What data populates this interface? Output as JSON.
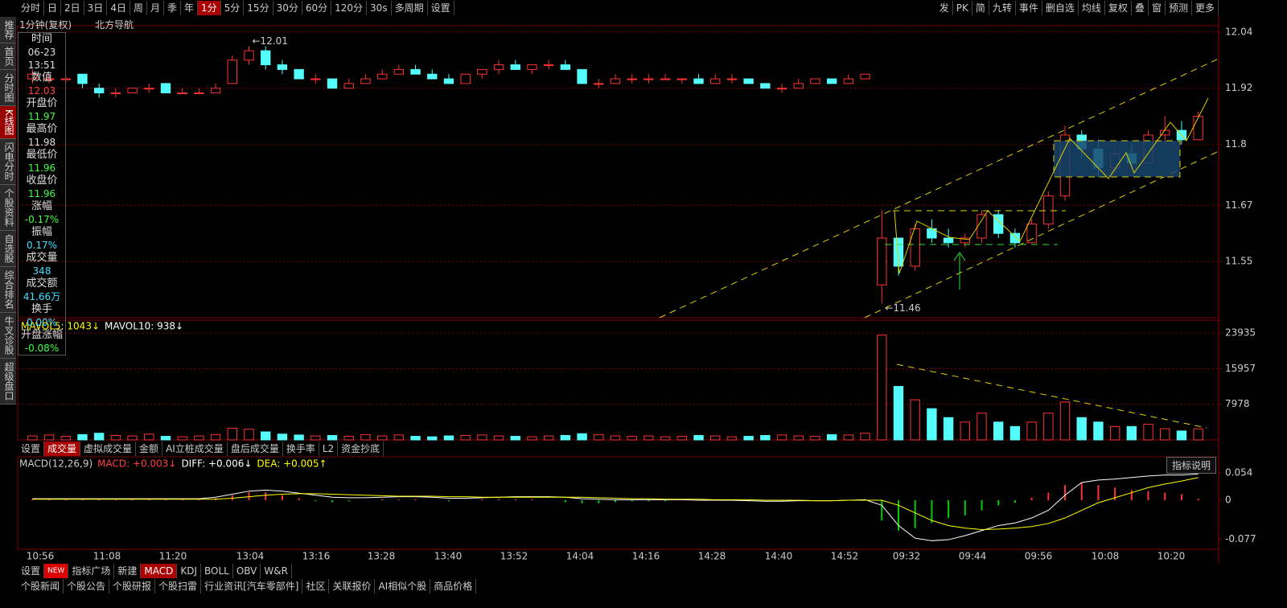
{
  "toolbar": {
    "left": [
      "分时",
      "日",
      "2日",
      "3日",
      "4日",
      "周",
      "月",
      "季",
      "年",
      "1分",
      "5分",
      "15分",
      "30分",
      "60分",
      "120分",
      "30s",
      "多周期",
      "设置"
    ],
    "right": [
      "发",
      "PK",
      "简",
      "九转",
      "事件",
      "删自选",
      "均线",
      "复权",
      "叠",
      "窗",
      "预测",
      "更多"
    ]
  },
  "sidebar": [
    "推荐",
    "首页",
    "分时图",
    "K线图",
    "闪电分时",
    "个股资料",
    "自选股",
    "综合排名",
    "牛叉诊股",
    "超级盘口"
  ],
  "header": {
    "period": "1分钟(复权)",
    "name": "北方导航"
  },
  "info": [
    {
      "label": "时间",
      "values": [
        "06-23",
        "13:51"
      ]
    },
    {
      "label": "数值",
      "values": [
        "12.03"
      ]
    },
    {
      "label": "开盘价",
      "values": [
        "11.97"
      ]
    },
    {
      "label": "最高价",
      "values": [
        "11.98"
      ]
    },
    {
      "label": "最低价",
      "values": [
        "11.96"
      ]
    },
    {
      "label": "收盘价",
      "values": [
        "11.96"
      ]
    },
    {
      "label": "涨幅",
      "values": [
        "-0.17%"
      ]
    },
    {
      "label": "振幅",
      "values": [
        "0.17%"
      ]
    },
    {
      "label": "成交量",
      "values": [
        "348"
      ]
    },
    {
      "label": "成交额",
      "values": [
        "41.66万"
      ]
    },
    {
      "label": "换手",
      "values": [
        "0.00%"
      ]
    },
    {
      "label": "开盘涨幅",
      "values": [
        "-0.08%"
      ]
    }
  ],
  "chart_data": [
    {
      "type": "candlestick",
      "up_color": "#ff3232",
      "down_color": "#54fcfc",
      "ylim": [
        11.43,
        12.05
      ],
      "yticks": [
        12.04,
        11.92,
        11.8,
        11.67,
        11.55
      ],
      "grid": true,
      "annotations": [
        "←12.01",
        "←11.46"
      ],
      "candles": [
        [
          11.94,
          11.96,
          11.93,
          11.95
        ],
        [
          11.94,
          11.95,
          11.93,
          11.94
        ],
        [
          11.94,
          11.95,
          11.93,
          11.94
        ],
        [
          11.95,
          11.95,
          11.92,
          11.93
        ],
        [
          11.92,
          11.93,
          11.9,
          11.91
        ],
        [
          11.91,
          11.92,
          11.9,
          11.91
        ],
        [
          11.91,
          11.92,
          11.91,
          11.92
        ],
        [
          11.92,
          11.93,
          11.91,
          11.92
        ],
        [
          11.93,
          11.93,
          11.91,
          11.91
        ],
        [
          11.91,
          11.92,
          11.91,
          11.91
        ],
        [
          11.91,
          11.92,
          11.91,
          11.91
        ],
        [
          11.91,
          11.93,
          11.91,
          11.92
        ],
        [
          11.93,
          11.99,
          11.93,
          11.98
        ],
        [
          11.98,
          12.01,
          11.97,
          12.0
        ],
        [
          12.0,
          12.01,
          11.96,
          11.97
        ],
        [
          11.97,
          11.98,
          11.95,
          11.96
        ],
        [
          11.96,
          11.96,
          11.94,
          11.94
        ],
        [
          11.94,
          11.95,
          11.93,
          11.94
        ],
        [
          11.94,
          11.94,
          11.92,
          11.92
        ],
        [
          11.92,
          11.94,
          11.92,
          11.93
        ],
        [
          11.93,
          11.95,
          11.93,
          11.94
        ],
        [
          11.94,
          11.96,
          11.94,
          11.95
        ],
        [
          11.95,
          11.97,
          11.95,
          11.96
        ],
        [
          11.96,
          11.97,
          11.95,
          11.95
        ],
        [
          11.95,
          11.96,
          11.94,
          11.94
        ],
        [
          11.94,
          11.95,
          11.93,
          11.93
        ],
        [
          11.93,
          11.95,
          11.93,
          11.95
        ],
        [
          11.95,
          11.96,
          11.94,
          11.96
        ],
        [
          11.96,
          11.98,
          11.95,
          11.97
        ],
        [
          11.97,
          11.98,
          11.96,
          11.96
        ],
        [
          11.96,
          11.97,
          11.95,
          11.97
        ],
        [
          11.97,
          11.98,
          11.96,
          11.97
        ],
        [
          11.97,
          11.98,
          11.96,
          11.96
        ],
        [
          11.96,
          11.96,
          11.93,
          11.93
        ],
        [
          11.93,
          11.94,
          11.92,
          11.93
        ],
        [
          11.93,
          11.95,
          11.93,
          11.94
        ],
        [
          11.94,
          11.95,
          11.93,
          11.94
        ],
        [
          11.94,
          11.95,
          11.93,
          11.94
        ],
        [
          11.94,
          11.95,
          11.94,
          11.94
        ],
        [
          11.94,
          11.94,
          11.93,
          11.94
        ],
        [
          11.94,
          11.95,
          11.93,
          11.93
        ],
        [
          11.93,
          11.95,
          11.93,
          11.94
        ],
        [
          11.94,
          11.95,
          11.93,
          11.94
        ],
        [
          11.94,
          11.94,
          11.93,
          11.93
        ],
        [
          11.93,
          11.93,
          11.92,
          11.92
        ],
        [
          11.92,
          11.93,
          11.91,
          11.92
        ],
        [
          11.92,
          11.94,
          11.92,
          11.93
        ],
        [
          11.93,
          11.94,
          11.93,
          11.94
        ],
        [
          11.94,
          11.94,
          11.93,
          11.93
        ],
        [
          11.93,
          11.95,
          11.93,
          11.94
        ],
        [
          11.94,
          11.95,
          11.94,
          11.95
        ],
        [
          11.5,
          11.66,
          11.46,
          11.6
        ],
        [
          11.6,
          11.6,
          11.52,
          11.54
        ],
        [
          11.54,
          11.63,
          11.53,
          11.62
        ],
        [
          11.62,
          11.64,
          11.59,
          11.6
        ],
        [
          11.6,
          11.62,
          11.58,
          11.59
        ],
        [
          11.59,
          11.61,
          11.58,
          11.6
        ],
        [
          11.6,
          11.66,
          11.59,
          11.65
        ],
        [
          11.65,
          11.66,
          11.6,
          11.61
        ],
        [
          11.61,
          11.62,
          11.58,
          11.59
        ],
        [
          11.59,
          11.64,
          11.59,
          11.63
        ],
        [
          11.63,
          11.7,
          11.62,
          11.69
        ],
        [
          11.69,
          11.84,
          11.68,
          11.82
        ],
        [
          11.82,
          11.83,
          11.77,
          11.79
        ],
        [
          11.79,
          11.81,
          11.73,
          11.75
        ],
        [
          11.75,
          11.79,
          11.74,
          11.78
        ],
        [
          11.78,
          11.8,
          11.75,
          11.76
        ],
        [
          11.76,
          11.83,
          11.76,
          11.82
        ],
        [
          11.82,
          11.86,
          11.8,
          11.83
        ],
        [
          11.83,
          11.85,
          11.8,
          11.81
        ],
        [
          11.81,
          11.87,
          11.81,
          11.86
        ]
      ]
    },
    {
      "type": "volume",
      "legend": [
        "MAVOL5: 1043↓",
        "MAVOL10: 938↓"
      ],
      "ylim": [
        0,
        24700
      ],
      "yticks": [
        23935,
        15957,
        7978
      ],
      "tabs": [
        "设置",
        "成交量",
        "虚拟成交量",
        "金额",
        "AI立桩成交量",
        "盘后成交量",
        "换手率",
        "L2",
        "资金抄底"
      ],
      "values": [
        900,
        1100,
        800,
        1200,
        1500,
        1000,
        900,
        1300,
        800,
        700,
        900,
        1200,
        2600,
        2400,
        1800,
        1300,
        1100,
        900,
        1000,
        800,
        1200,
        900,
        1100,
        800,
        700,
        900,
        1000,
        1100,
        900,
        800,
        700,
        900,
        1000,
        1400,
        1200,
        900,
        800,
        900,
        700,
        800,
        1000,
        900,
        700,
        800,
        1000,
        1100,
        900,
        800,
        1200,
        1100,
        1500,
        23500,
        12000,
        9000,
        7000,
        5000,
        4000,
        6000,
        4000,
        3000,
        4000,
        6000,
        8500,
        5000,
        4000,
        3000,
        3000,
        3500,
        2500,
        2000,
        2500
      ]
    },
    {
      "type": "macd",
      "title": "MACD(12,26,9)",
      "legend": [
        "MACD: +0.003↓",
        "DIFF: +0.006↓",
        "DEA: +0.005↑"
      ],
      "button": "指标说明",
      "ylim": [
        -0.097,
        0.07
      ],
      "yticks": [
        0.054,
        0,
        -0.077
      ],
      "histogram": [
        0.002,
        0.002,
        0.002,
        0.002,
        0.002,
        0.002,
        0.002,
        0.002,
        0.002,
        0.002,
        0.002,
        0.004,
        0.01,
        0.016,
        0.016,
        0.01,
        0.004,
        -0.002,
        -0.004,
        -0.002,
        0.0,
        0.002,
        0.002,
        0.002,
        0.0,
        -0.002,
        0.0,
        0.002,
        0.002,
        0.002,
        0.002,
        0.0,
        -0.004,
        -0.006,
        -0.006,
        -0.004,
        -0.002,
        -0.002,
        -0.002,
        0.0,
        0.0,
        0.0,
        0.0,
        -0.002,
        -0.002,
        -0.002,
        0.0,
        0.0,
        0.0,
        0.0,
        0.002,
        -0.04,
        -0.06,
        -0.055,
        -0.045,
        -0.035,
        -0.03,
        -0.02,
        -0.01,
        -0.005,
        0.005,
        0.015,
        0.03,
        0.035,
        0.03,
        0.025,
        0.02,
        0.018,
        0.015,
        0.012,
        0.003
      ],
      "series": [
        {
          "name": "DIFF",
          "color": "#ffffff",
          "values": [
            0.003,
            0.003,
            0.003,
            0.003,
            0.003,
            0.003,
            0.003,
            0.003,
            0.003,
            0.003,
            0.003,
            0.006,
            0.012,
            0.018,
            0.02,
            0.018,
            0.014,
            0.01,
            0.006,
            0.005,
            0.005,
            0.006,
            0.007,
            0.007,
            0.006,
            0.004,
            0.004,
            0.005,
            0.006,
            0.007,
            0.007,
            0.007,
            0.006,
            0.003,
            0.002,
            0.001,
            0.001,
            0.001,
            0.001,
            0.001,
            0.0,
            0.0,
            0.0,
            -0.001,
            -0.002,
            -0.002,
            -0.001,
            -0.001,
            -0.001,
            0.0,
            0.001,
            -0.01,
            -0.05,
            -0.075,
            -0.08,
            -0.078,
            -0.07,
            -0.06,
            -0.05,
            -0.045,
            -0.035,
            -0.02,
            0.01,
            0.035,
            0.04,
            0.042,
            0.045,
            0.048,
            0.05,
            0.05,
            0.052
          ]
        },
        {
          "name": "DEA",
          "color": "#ffff00",
          "values": [
            0.002,
            0.002,
            0.002,
            0.002,
            0.002,
            0.002,
            0.002,
            0.002,
            0.002,
            0.002,
            0.002,
            0.002,
            0.004,
            0.007,
            0.01,
            0.012,
            0.013,
            0.013,
            0.012,
            0.011,
            0.01,
            0.009,
            0.008,
            0.008,
            0.008,
            0.007,
            0.007,
            0.006,
            0.006,
            0.006,
            0.006,
            0.006,
            0.006,
            0.006,
            0.005,
            0.004,
            0.003,
            0.003,
            0.002,
            0.002,
            0.002,
            0.001,
            0.001,
            0.001,
            0.0,
            0.0,
            0.0,
            -0.001,
            -0.001,
            0.0,
            0.0,
            0.0,
            -0.01,
            -0.025,
            -0.04,
            -0.05,
            -0.055,
            -0.058,
            -0.057,
            -0.055,
            -0.052,
            -0.046,
            -0.035,
            -0.02,
            -0.005,
            0.005,
            0.015,
            0.025,
            0.032,
            0.038,
            0.045
          ]
        }
      ]
    }
  ],
  "time_axis": [
    "10:56",
    "11:08",
    "11:20",
    "13:04",
    "13:16",
    "13:28",
    "13:40",
    "13:52",
    "14:04",
    "14:16",
    "14:28",
    "14:40",
    "14:52",
    "09:32",
    "09:44",
    "09:56",
    "10:08",
    "10:20"
  ],
  "indicator_tabs": [
    "设置",
    "NEW",
    "指标广场",
    "新建",
    "MACD",
    "KDJ",
    "BOLL",
    "OBV",
    "W&R"
  ],
  "news_tabs": [
    "个股新闻",
    "个股公告",
    "个股研报",
    "个股扫雷",
    "行业资讯[汽车零部件]",
    "社区",
    "关联报价",
    "AI相似个股",
    "商品价格"
  ]
}
